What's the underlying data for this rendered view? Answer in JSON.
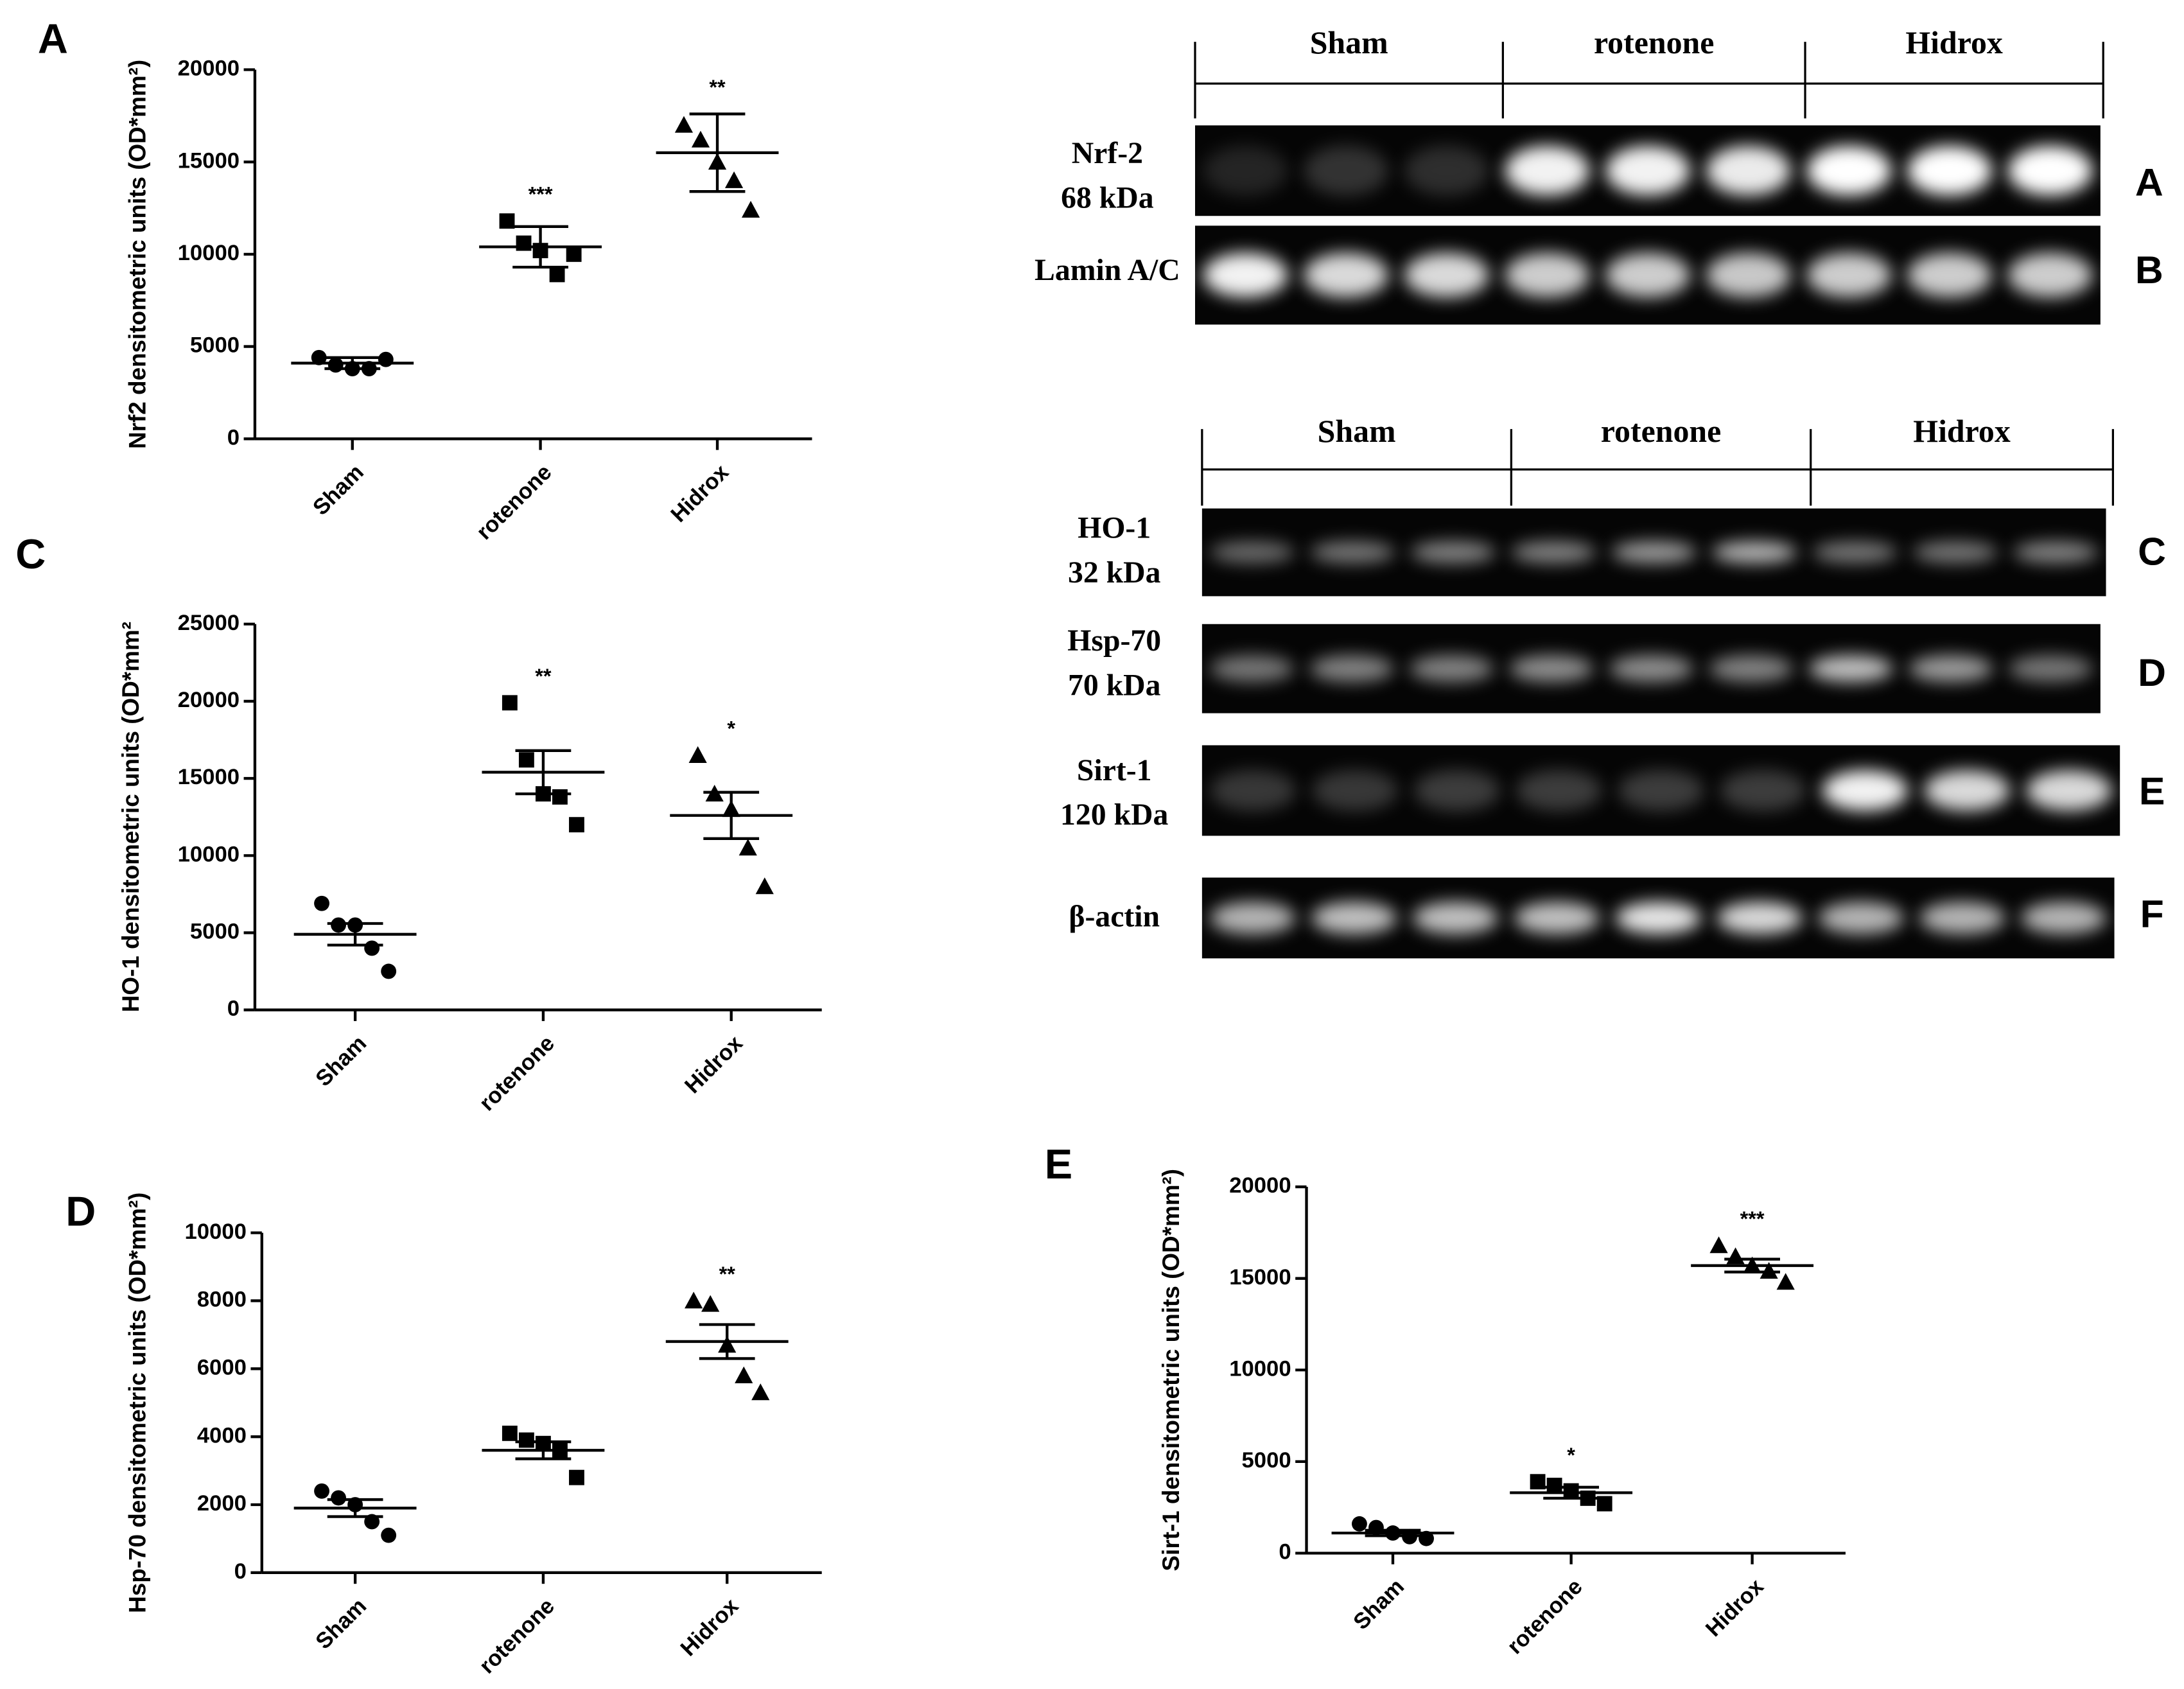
{
  "chart_data": [
    {
      "type": "scatter",
      "panel": "A",
      "y_label": "Nrf2 densitometric units (OD*mm²)",
      "categories": [
        "Sham",
        "rotenone",
        "Hidrox"
      ],
      "markers": [
        "circle",
        "square",
        "triangle"
      ],
      "color": "#000000",
      "points": [
        [
          4400,
          4000,
          3800,
          3800,
          4300
        ],
        [
          11800,
          10600,
          10200,
          8900,
          10000
        ],
        [
          17000,
          16200,
          15000,
          14000,
          12400
        ]
      ],
      "means": [
        4100,
        10400,
        15500
      ],
      "sem": [
        300,
        1100,
        2100
      ],
      "significance": [
        null,
        "***",
        "**"
      ],
      "ylim": [
        0,
        20000
      ],
      "yticks": [
        0,
        5000,
        10000,
        15000,
        20000
      ]
    },
    {
      "type": "scatter",
      "panel": "C",
      "y_label": "HO-1 densitometric units (OD*mm²",
      "categories": [
        "Sham",
        "rotenone",
        "Hidrox"
      ],
      "markers": [
        "circle",
        "square",
        "triangle"
      ],
      "color": "#000000",
      "points": [
        [
          6900,
          5500,
          5500,
          4000,
          2500
        ],
        [
          19900,
          16200,
          14000,
          13800,
          12000
        ],
        [
          16500,
          14000,
          13000,
          10500,
          8000
        ]
      ],
      "means": [
        4900,
        15400,
        12600
      ],
      "sem": [
        700,
        1400,
        1500
      ],
      "significance": [
        null,
        "**",
        "*"
      ],
      "ylim": [
        0,
        25000
      ],
      "yticks": [
        0,
        5000,
        10000,
        15000,
        20000,
        25000
      ]
    },
    {
      "type": "scatter",
      "panel": "D",
      "y_label": "Hsp-70 densitometric units (OD*mm²)",
      "categories": [
        "Sham",
        "rotenone",
        "Hidrox"
      ],
      "markers": [
        "circle",
        "square",
        "triangle"
      ],
      "color": "#000000",
      "points": [
        [
          2400,
          2200,
          2000,
          1500,
          1100
        ],
        [
          4100,
          3900,
          3800,
          3600,
          2800
        ],
        [
          8000,
          7900,
          6700,
          5800,
          5300
        ]
      ],
      "means": [
        1900,
        3600,
        6800
      ],
      "sem": [
        250,
        250,
        500
      ],
      "significance": [
        null,
        null,
        "**"
      ],
      "ylim": [
        0,
        10000
      ],
      "yticks": [
        0,
        2000,
        4000,
        6000,
        8000,
        10000
      ]
    },
    {
      "type": "scatter",
      "panel": "E",
      "y_label": "Sirt-1 densitometric units (OD*mm²)",
      "categories": [
        "Sham",
        "rotenone",
        "Hidrox"
      ],
      "markers": [
        "circle",
        "square",
        "triangle"
      ],
      "color": "#000000",
      "points": [
        [
          1600,
          1400,
          1100,
          900,
          800
        ],
        [
          3900,
          3700,
          3400,
          3000,
          2700
        ],
        [
          16800,
          16200,
          15700,
          15400,
          14800
        ]
      ],
      "means": [
        1100,
        3300,
        15700
      ],
      "sem": [
        150,
        300,
        350
      ],
      "significance": [
        null,
        "*",
        "***"
      ],
      "ylim": [
        0,
        20000
      ],
      "yticks": [
        0,
        5000,
        10000,
        15000,
        20000
      ]
    }
  ],
  "blots": [
    {
      "groups": [
        "Sham",
        "rotenone",
        "Hidrox"
      ],
      "rows": [
        {
          "label": [
            "Nrf-2",
            "68  kDa"
          ],
          "panel": "A"
        },
        {
          "label": [
            "Lamin A/C"
          ],
          "panel": "B"
        }
      ]
    },
    {
      "groups": [
        "Sham",
        "rotenone",
        "Hidrox"
      ],
      "rows": [
        {
          "label": [
            "HO-1",
            "32 kDa"
          ],
          "panel": "C"
        },
        {
          "label": [
            "Hsp-70",
            "70 kDa"
          ],
          "panel": "D"
        },
        {
          "label": [
            "Sirt-1",
            "120 kDa"
          ],
          "panel": "E"
        },
        {
          "label": [
            "β-actin"
          ],
          "panel": "F"
        }
      ]
    }
  ]
}
